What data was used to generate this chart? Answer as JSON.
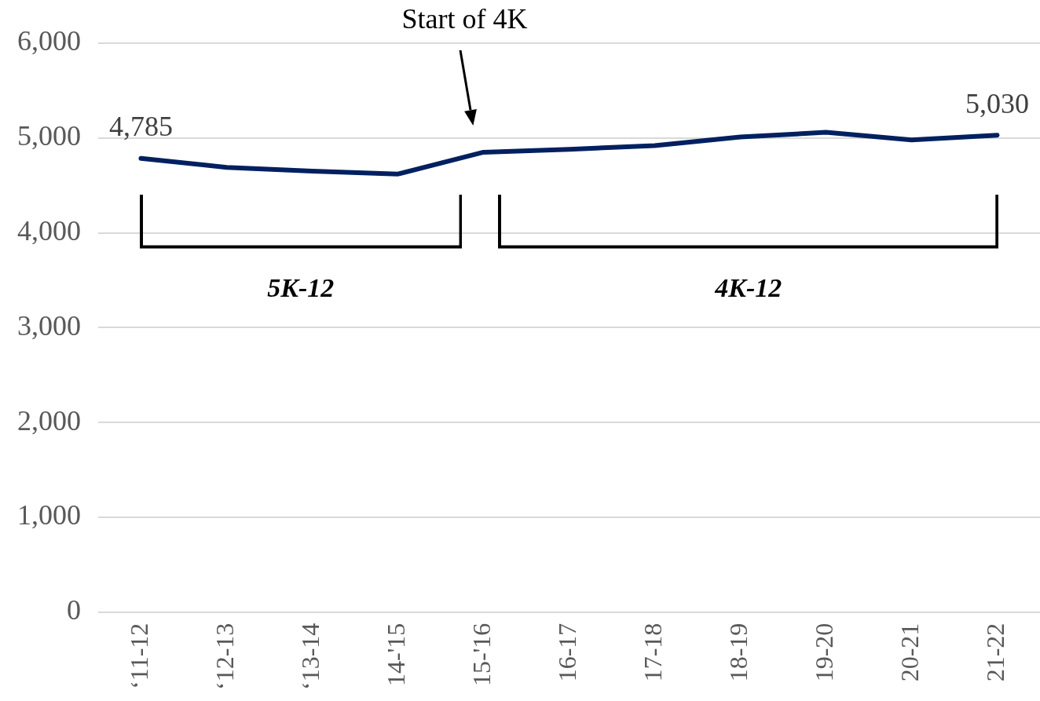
{
  "chart_data": {
    "type": "line",
    "categories": [
      "‘11-12",
      "‘12-13",
      "‘13-14",
      "14-'15",
      "15-'16",
      "16-17",
      "17-18",
      "18-19",
      "19-20",
      "20-21",
      "21-22"
    ],
    "series": [
      {
        "color": "#002060",
        "values": [
          4785,
          4690,
          4650,
          4620,
          4850,
          4880,
          4920,
          5010,
          5060,
          4980,
          5030
        ],
        "value_labels": [
          "4,785",
          null,
          null,
          null,
          null,
          null,
          null,
          null,
          null,
          null,
          "5,030"
        ]
      }
    ],
    "ylim": [
      0,
      6000
    ],
    "yticks": [
      {
        "value": 0,
        "label": "0"
      },
      {
        "value": 1000,
        "label": "1,000"
      },
      {
        "value": 2000,
        "label": "2,000"
      },
      {
        "value": 3000,
        "label": "3,000"
      },
      {
        "value": 4000,
        "label": "4,000"
      },
      {
        "value": 5000,
        "label": "5,000"
      },
      {
        "value": 6000,
        "label": "6,000"
      }
    ],
    "grid": "y",
    "legend": false,
    "marker": "none",
    "line_style": "solid",
    "annotations": [
      "Start of 4K",
      "5K-12",
      "4K-12"
    ]
  }
}
